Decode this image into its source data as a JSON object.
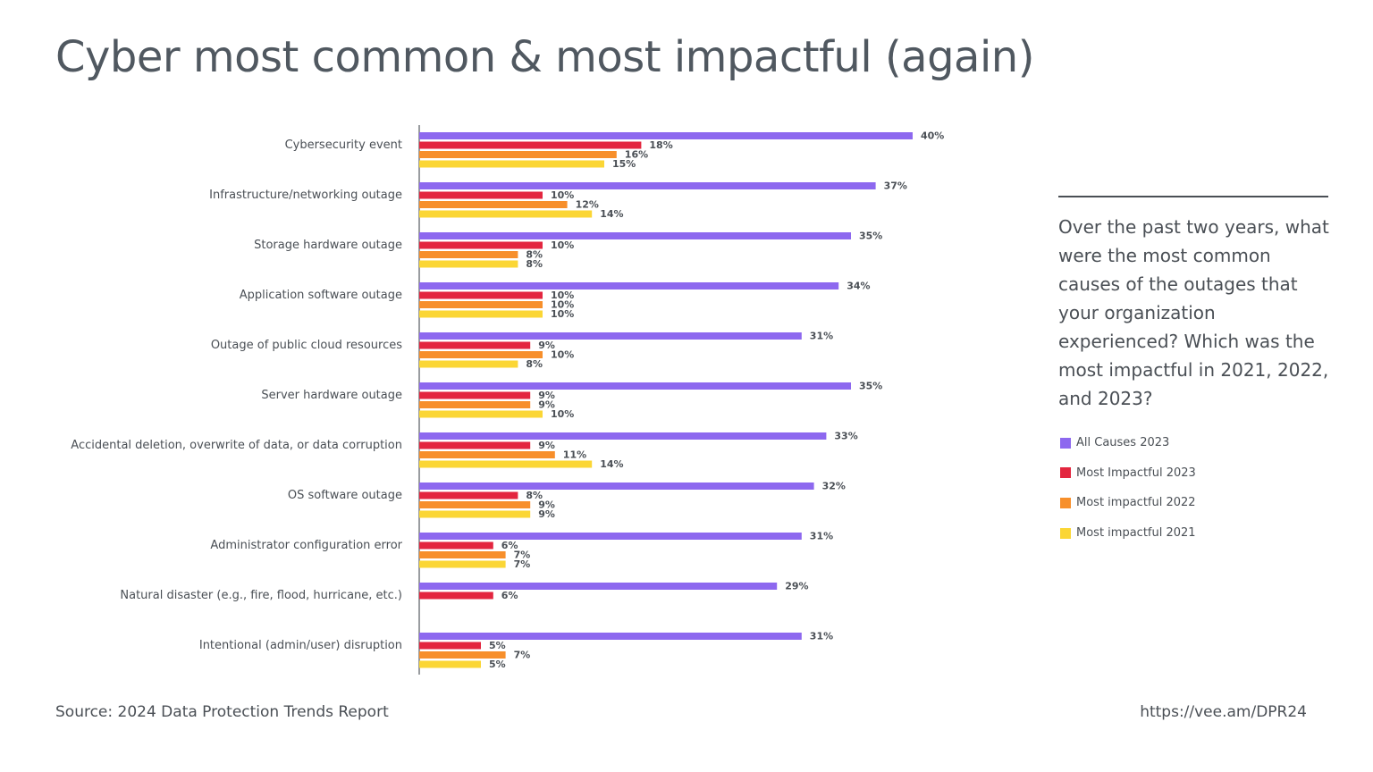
{
  "page": {
    "title": "Cyber most common & most impactful (again)",
    "question": "Over the past two years, what were the most common causes of the outages that your organization experienced? Which was the most impactful in 2021, 2022, and 2023?",
    "source": "Source: 2024 Data Protection Trends Report",
    "url": "https://vee.am/DPR24"
  },
  "chart_data": {
    "type": "bar",
    "orientation": "horizontal",
    "xlim": [
      0,
      40
    ],
    "grid": false,
    "legend_position": "right",
    "value_suffix": "%",
    "categories": [
      "Cybersecurity event",
      "Infrastructure/networking outage",
      "Storage hardware outage",
      "Application software outage",
      "Outage of public cloud resources",
      "Server hardware outage",
      "Accidental deletion, overwrite of data, or data corruption",
      "OS software outage",
      "Administrator configuration error",
      "Natural disaster (e.g., fire, flood, hurricane, etc.)",
      "Intentional (admin/user) disruption"
    ],
    "series": [
      {
        "name": "All Causes 2023",
        "color": "#8d68ef",
        "values": [
          40,
          37,
          35,
          34,
          31,
          35,
          33,
          32,
          31,
          29,
          31
        ]
      },
      {
        "name": "Most Impactful 2023",
        "color": "#e3263f",
        "values": [
          18,
          10,
          10,
          10,
          9,
          9,
          9,
          8,
          6,
          6,
          5
        ]
      },
      {
        "name": "Most impactful 2022",
        "color": "#f78f2b",
        "values": [
          16,
          12,
          8,
          10,
          10,
          9,
          11,
          9,
          7,
          null,
          7
        ]
      },
      {
        "name": "Most impactful 2021",
        "color": "#fbd635",
        "values": [
          15,
          14,
          8,
          10,
          8,
          10,
          14,
          9,
          7,
          null,
          5
        ]
      }
    ]
  }
}
